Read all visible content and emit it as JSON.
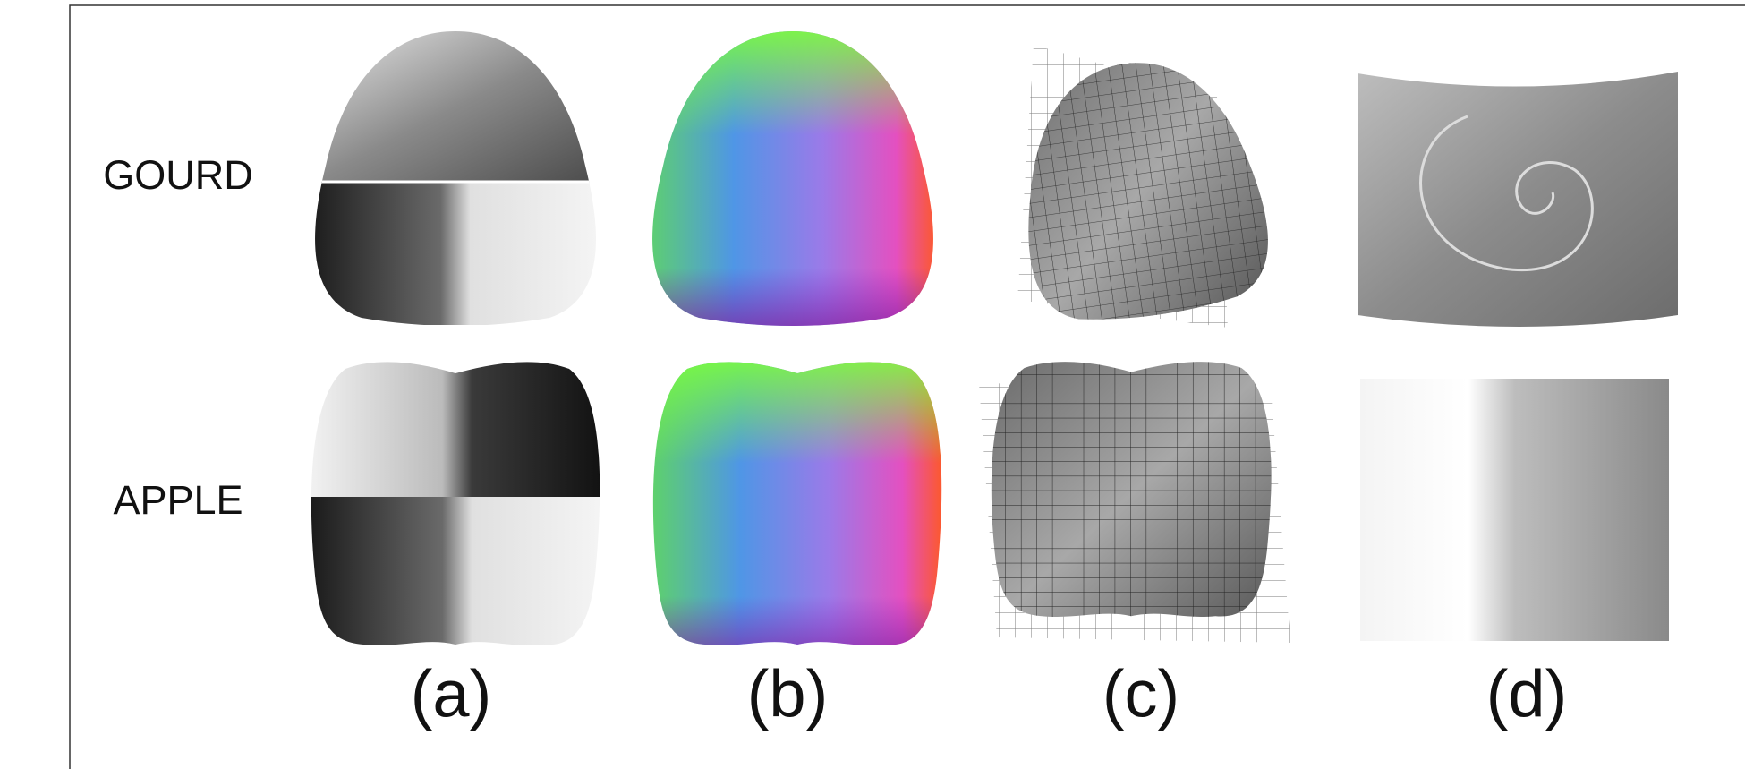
{
  "rows": [
    "GOURD",
    "APPLE"
  ],
  "columns": [
    "(a)",
    "(b)",
    "(c)",
    "(d)"
  ]
}
